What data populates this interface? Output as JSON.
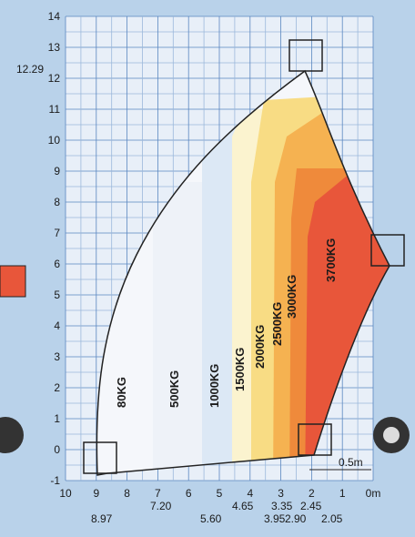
{
  "y_axis": {
    "labels": [
      "14",
      "13",
      "12",
      "11",
      "10",
      "9",
      "8",
      "7",
      "6",
      "5",
      "4",
      "3",
      "2",
      "1",
      "0",
      "-1"
    ]
  },
  "x_axis": {
    "labels": [
      "10",
      "9",
      "8",
      "7",
      "6",
      "5",
      "4",
      "3",
      "2",
      "1",
      "0m"
    ]
  },
  "annotations": {
    "max_height": "12.29",
    "reach_labels": [
      "8.97",
      "7.20",
      "5.60",
      "4.65",
      "3.95",
      "3.35",
      "2.90",
      "2.45",
      "2.05"
    ],
    "offset": "0.5m"
  },
  "zones": [
    "80KG",
    "500KG",
    "1000KG",
    "1500KG",
    "2000KG",
    "2500KG",
    "3000KG",
    "3700KG"
  ]
}
